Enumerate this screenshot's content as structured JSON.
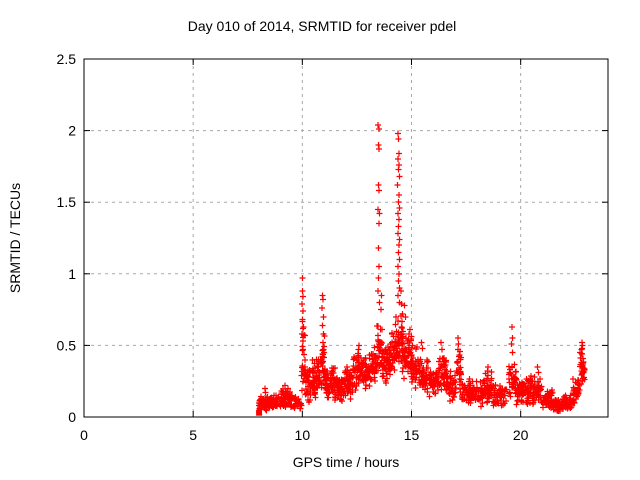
{
  "chart_data": {
    "type": "scatter",
    "title": "Day 010 of 2014, SRMTID for receiver pdel",
    "xlabel": "GPS time / hours",
    "ylabel": "SRMTID / TECUs",
    "xlim": [
      0,
      24
    ],
    "ylim": [
      0,
      2.5
    ],
    "xticks": [
      {
        "v": 0,
        "label": "0"
      },
      {
        "v": 5,
        "label": "5"
      },
      {
        "v": 10,
        "label": "10"
      },
      {
        "v": 15,
        "label": "15"
      },
      {
        "v": 20,
        "label": "20"
      }
    ],
    "yticks": [
      {
        "v": 0,
        "label": "0"
      },
      {
        "v": 0.5,
        "label": "0.5"
      },
      {
        "v": 1,
        "label": "1"
      },
      {
        "v": 1.5,
        "label": "1.5"
      },
      {
        "v": 2,
        "label": "2"
      },
      {
        "v": 2.5,
        "label": "2.5"
      }
    ],
    "grid": true,
    "legend": "none",
    "marker": {
      "shape": "plus",
      "color": "#ff0000",
      "size": 6
    },
    "colors": {
      "background": "#ffffff",
      "grid": "#a8a8a8",
      "border": "#000000",
      "text": "#000000"
    },
    "seed": 101,
    "start_marker": {
      "shape": "square",
      "point": [
        8.02,
        0.03
      ]
    },
    "points": [
      [
        8.3,
        0.2
      ],
      [
        8.32,
        0.17
      ],
      [
        9.2,
        0.22
      ],
      [
        9.35,
        0.2
      ],
      [
        10.0,
        0.97
      ],
      [
        10.0,
        0.88
      ],
      [
        10.02,
        0.84
      ],
      [
        9.98,
        0.79
      ],
      [
        10.03,
        0.74
      ],
      [
        10.0,
        0.68
      ],
      [
        10.05,
        0.63
      ],
      [
        9.99,
        0.58
      ],
      [
        10.02,
        0.53
      ],
      [
        10.93,
        0.85
      ],
      [
        10.95,
        0.82
      ],
      [
        10.9,
        0.76
      ],
      [
        10.96,
        0.7
      ],
      [
        10.92,
        0.64
      ],
      [
        10.97,
        0.58
      ],
      [
        10.94,
        0.52
      ],
      [
        12.6,
        0.5
      ],
      [
        12.57,
        0.47
      ],
      [
        13.47,
        2.04
      ],
      [
        13.5,
        2.01
      ],
      [
        13.48,
        1.9
      ],
      [
        13.52,
        1.87
      ],
      [
        13.49,
        1.62
      ],
      [
        13.51,
        1.58
      ],
      [
        13.47,
        1.45
      ],
      [
        13.53,
        1.42
      ],
      [
        13.5,
        1.35
      ],
      [
        13.48,
        1.18
      ],
      [
        13.52,
        1.05
      ],
      [
        13.49,
        0.97
      ],
      [
        13.46,
        0.88
      ],
      [
        13.54,
        0.8
      ],
      [
        13.62,
        0.85
      ],
      [
        13.6,
        0.75
      ],
      [
        14.38,
        1.98
      ],
      [
        14.4,
        1.94
      ],
      [
        14.42,
        1.84
      ],
      [
        14.39,
        1.8
      ],
      [
        14.43,
        1.76
      ],
      [
        14.41,
        1.73
      ],
      [
        14.44,
        1.68
      ],
      [
        14.37,
        1.62
      ],
      [
        14.42,
        1.55
      ],
      [
        14.4,
        1.5
      ],
      [
        14.45,
        1.46
      ],
      [
        14.38,
        1.42
      ],
      [
        14.43,
        1.38
      ],
      [
        14.41,
        1.33
      ],
      [
        14.39,
        1.28
      ],
      [
        14.44,
        1.24
      ],
      [
        14.42,
        1.2
      ],
      [
        14.4,
        1.15
      ],
      [
        14.46,
        1.1
      ],
      [
        14.38,
        1.05
      ],
      [
        14.43,
        1.0
      ],
      [
        14.41,
        0.95
      ],
      [
        14.45,
        0.9
      ],
      [
        14.39,
        0.85
      ],
      [
        14.44,
        0.8
      ],
      [
        14.52,
        0.88
      ],
      [
        14.55,
        0.79
      ],
      [
        14.58,
        0.72
      ],
      [
        14.68,
        0.78
      ],
      [
        14.72,
        0.7
      ],
      [
        15.45,
        0.52
      ],
      [
        15.5,
        0.48
      ],
      [
        16.35,
        0.52
      ],
      [
        16.4,
        0.47
      ],
      [
        17.13,
        0.55
      ],
      [
        17.15,
        0.51
      ],
      [
        17.12,
        0.47
      ],
      [
        18.5,
        0.35
      ],
      [
        18.47,
        0.32
      ],
      [
        19.6,
        0.63
      ],
      [
        19.63,
        0.55
      ],
      [
        19.58,
        0.51
      ],
      [
        19.62,
        0.45
      ],
      [
        20.78,
        0.35
      ],
      [
        20.82,
        0.31
      ],
      [
        22.8,
        0.52
      ],
      [
        22.83,
        0.5
      ],
      [
        22.78,
        0.47
      ],
      [
        22.82,
        0.44
      ],
      [
        22.85,
        0.41
      ],
      [
        22.79,
        0.38
      ],
      [
        22.84,
        0.35
      ],
      [
        22.81,
        0.3
      ],
      [
        22.86,
        0.27
      ],
      [
        22.77,
        0.23
      ]
    ],
    "bands_format": [
      "t_start",
      "t_end",
      "count",
      "v_min",
      "v_max"
    ],
    "bands": [
      [
        8.0,
        8.5,
        55,
        0.04,
        0.16
      ],
      [
        8.5,
        9.0,
        50,
        0.04,
        0.16
      ],
      [
        9.0,
        9.45,
        45,
        0.06,
        0.22
      ],
      [
        9.45,
        9.75,
        25,
        0.05,
        0.18
      ],
      [
        9.75,
        9.98,
        12,
        0.05,
        0.14
      ],
      [
        9.95,
        10.12,
        26,
        0.1,
        0.72
      ],
      [
        10.1,
        10.45,
        42,
        0.08,
        0.38
      ],
      [
        10.45,
        10.8,
        45,
        0.1,
        0.45
      ],
      [
        10.82,
        11.05,
        30,
        0.15,
        0.6
      ],
      [
        11.05,
        11.5,
        55,
        0.1,
        0.38
      ],
      [
        11.5,
        11.95,
        50,
        0.08,
        0.3
      ],
      [
        11.95,
        12.3,
        45,
        0.12,
        0.38
      ],
      [
        12.3,
        12.75,
        50,
        0.15,
        0.48
      ],
      [
        12.75,
        13.15,
        45,
        0.18,
        0.45
      ],
      [
        13.15,
        13.42,
        30,
        0.2,
        0.5
      ],
      [
        13.42,
        13.65,
        32,
        0.28,
        0.72
      ],
      [
        13.65,
        14.0,
        45,
        0.22,
        0.52
      ],
      [
        14.0,
        14.25,
        30,
        0.25,
        0.6
      ],
      [
        14.25,
        14.62,
        48,
        0.28,
        0.72
      ],
      [
        14.62,
        15.0,
        55,
        0.25,
        0.62
      ],
      [
        15.0,
        15.35,
        45,
        0.2,
        0.52
      ],
      [
        15.35,
        15.8,
        45,
        0.15,
        0.42
      ],
      [
        15.8,
        16.2,
        40,
        0.12,
        0.35
      ],
      [
        16.2,
        16.6,
        45,
        0.15,
        0.48
      ],
      [
        16.6,
        17.05,
        40,
        0.1,
        0.32
      ],
      [
        17.05,
        17.3,
        25,
        0.15,
        0.48
      ],
      [
        17.3,
        17.8,
        45,
        0.08,
        0.28
      ],
      [
        17.8,
        18.3,
        45,
        0.07,
        0.26
      ],
      [
        18.3,
        18.75,
        45,
        0.08,
        0.32
      ],
      [
        18.75,
        19.35,
        50,
        0.06,
        0.25
      ],
      [
        19.45,
        19.8,
        35,
        0.1,
        0.42
      ],
      [
        19.8,
        20.15,
        40,
        0.07,
        0.28
      ],
      [
        20.15,
        20.5,
        40,
        0.08,
        0.33
      ],
      [
        20.5,
        20.95,
        45,
        0.07,
        0.3
      ],
      [
        20.95,
        21.45,
        50,
        0.05,
        0.2
      ],
      [
        21.45,
        21.95,
        50,
        0.03,
        0.14
      ],
      [
        21.95,
        22.4,
        45,
        0.04,
        0.16
      ],
      [
        22.4,
        22.7,
        30,
        0.07,
        0.28
      ],
      [
        22.7,
        22.92,
        22,
        0.18,
        0.5
      ]
    ]
  }
}
